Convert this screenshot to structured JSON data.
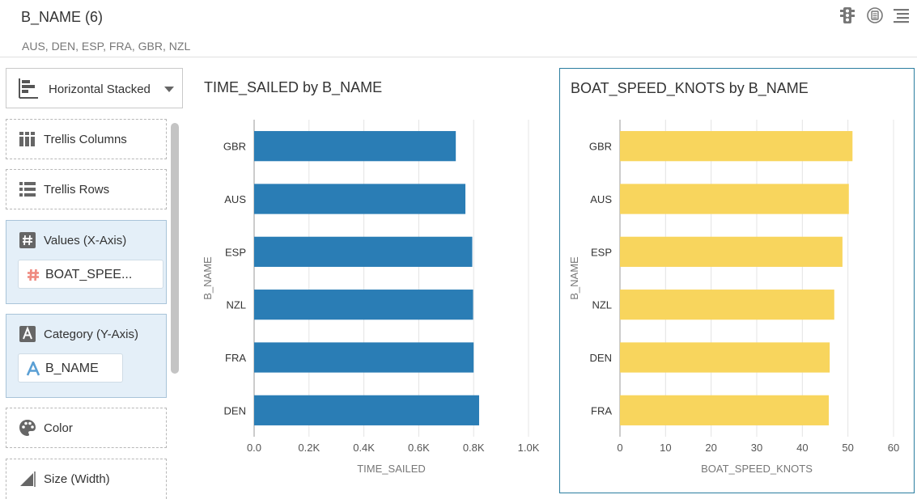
{
  "header": {
    "title": "B_NAME (6)",
    "subtitle": "AUS, DEN, ESP, FRA, GBR, NZL"
  },
  "left_panel": {
    "viz_type": "Horizontal Stacked",
    "trellis_columns": "Trellis Columns",
    "trellis_rows": "Trellis Rows",
    "values_label": "Values (X-Axis)",
    "values_field": "BOAT_SPEE...",
    "category_label": "Category (Y-Axis)",
    "category_field": "B_NAME",
    "color_label": "Color",
    "size_label": "Size (Width)"
  },
  "colors": {
    "chart1": "#2a7db5",
    "chart2": "#f8d55d",
    "selected_border": "#2a7d9f"
  },
  "chart_data": [
    {
      "type": "bar",
      "orientation": "horizontal",
      "title": "TIME_SAILED by B_NAME",
      "xlabel": "TIME_SAILED",
      "ylabel": "B_NAME",
      "categories": [
        "GBR",
        "AUS",
        "ESP",
        "NZL",
        "FRA",
        "DEN"
      ],
      "values": [
        735,
        770,
        795,
        798,
        800,
        820
      ],
      "xlim": [
        0,
        1000
      ],
      "xticks": [
        0,
        200,
        400,
        600,
        800,
        1000
      ],
      "xtick_labels": [
        "0.0",
        "0.2K",
        "0.4K",
        "0.6K",
        "0.8K",
        "1.0K"
      ],
      "grid": true
    },
    {
      "type": "bar",
      "orientation": "horizontal",
      "title": "BOAT_SPEED_KNOTS by B_NAME",
      "xlabel": "BOAT_SPEED_KNOTS",
      "ylabel": "B_NAME",
      "categories": [
        "GBR",
        "AUS",
        "ESP",
        "NZL",
        "DEN",
        "FRA"
      ],
      "values": [
        51,
        50.2,
        48.8,
        47,
        46,
        45.8
      ],
      "xlim": [
        0,
        60
      ],
      "xticks": [
        0,
        10,
        20,
        30,
        40,
        50,
        60
      ],
      "xtick_labels": [
        "0",
        "10",
        "20",
        "30",
        "40",
        "50",
        "60"
      ],
      "grid": true
    }
  ]
}
